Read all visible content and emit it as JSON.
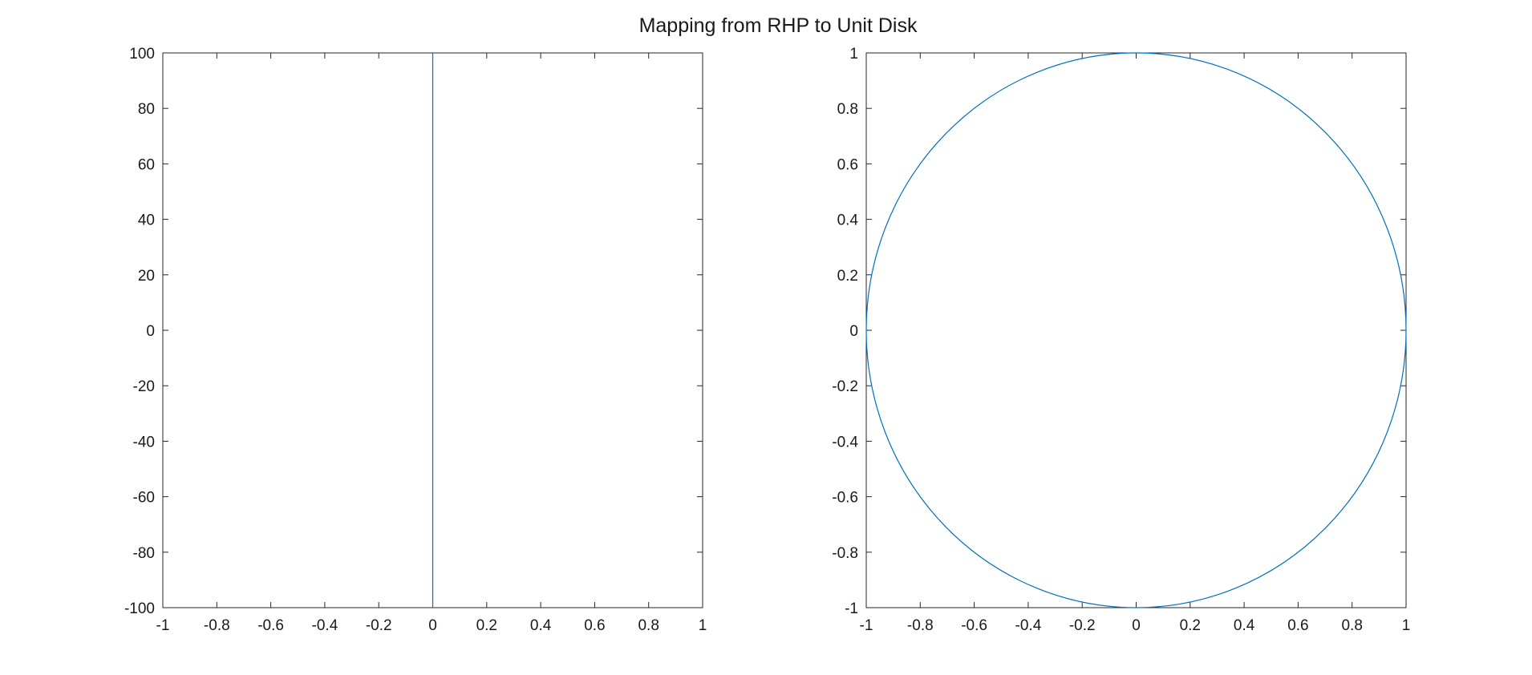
{
  "figure": {
    "title": "Mapping from RHP to Unit Disk"
  },
  "chart_data": [
    {
      "type": "line",
      "title": "",
      "xlabel": "",
      "ylabel": "",
      "xlim": [
        -1,
        1
      ],
      "ylim": [
        -100,
        100
      ],
      "xticks": [
        -1,
        -0.8,
        -0.6,
        -0.4,
        -0.2,
        0,
        0.2,
        0.4,
        0.6,
        0.8,
        1
      ],
      "yticks": [
        -100,
        -80,
        -60,
        -40,
        -20,
        0,
        20,
        40,
        60,
        80,
        100
      ],
      "grid": false,
      "series": [
        {
          "color": "#0072BD",
          "x": [
            0,
            0
          ],
          "y": [
            -100,
            100
          ]
        }
      ]
    },
    {
      "type": "line",
      "title": "",
      "xlabel": "",
      "ylabel": "",
      "xlim": [
        -1,
        1
      ],
      "ylim": [
        -1,
        1
      ],
      "xticks": [
        -1,
        -0.8,
        -0.6,
        -0.4,
        -0.2,
        0,
        0.2,
        0.4,
        0.6,
        0.8,
        1
      ],
      "yticks": [
        -1,
        -0.8,
        -0.6,
        -0.4,
        -0.2,
        0,
        0.2,
        0.4,
        0.6,
        0.8,
        1
      ],
      "grid": false,
      "series": [
        {
          "color": "#0072BD",
          "shape": "unit-circle",
          "center": [
            0,
            0
          ],
          "radius": 1
        }
      ]
    }
  ]
}
